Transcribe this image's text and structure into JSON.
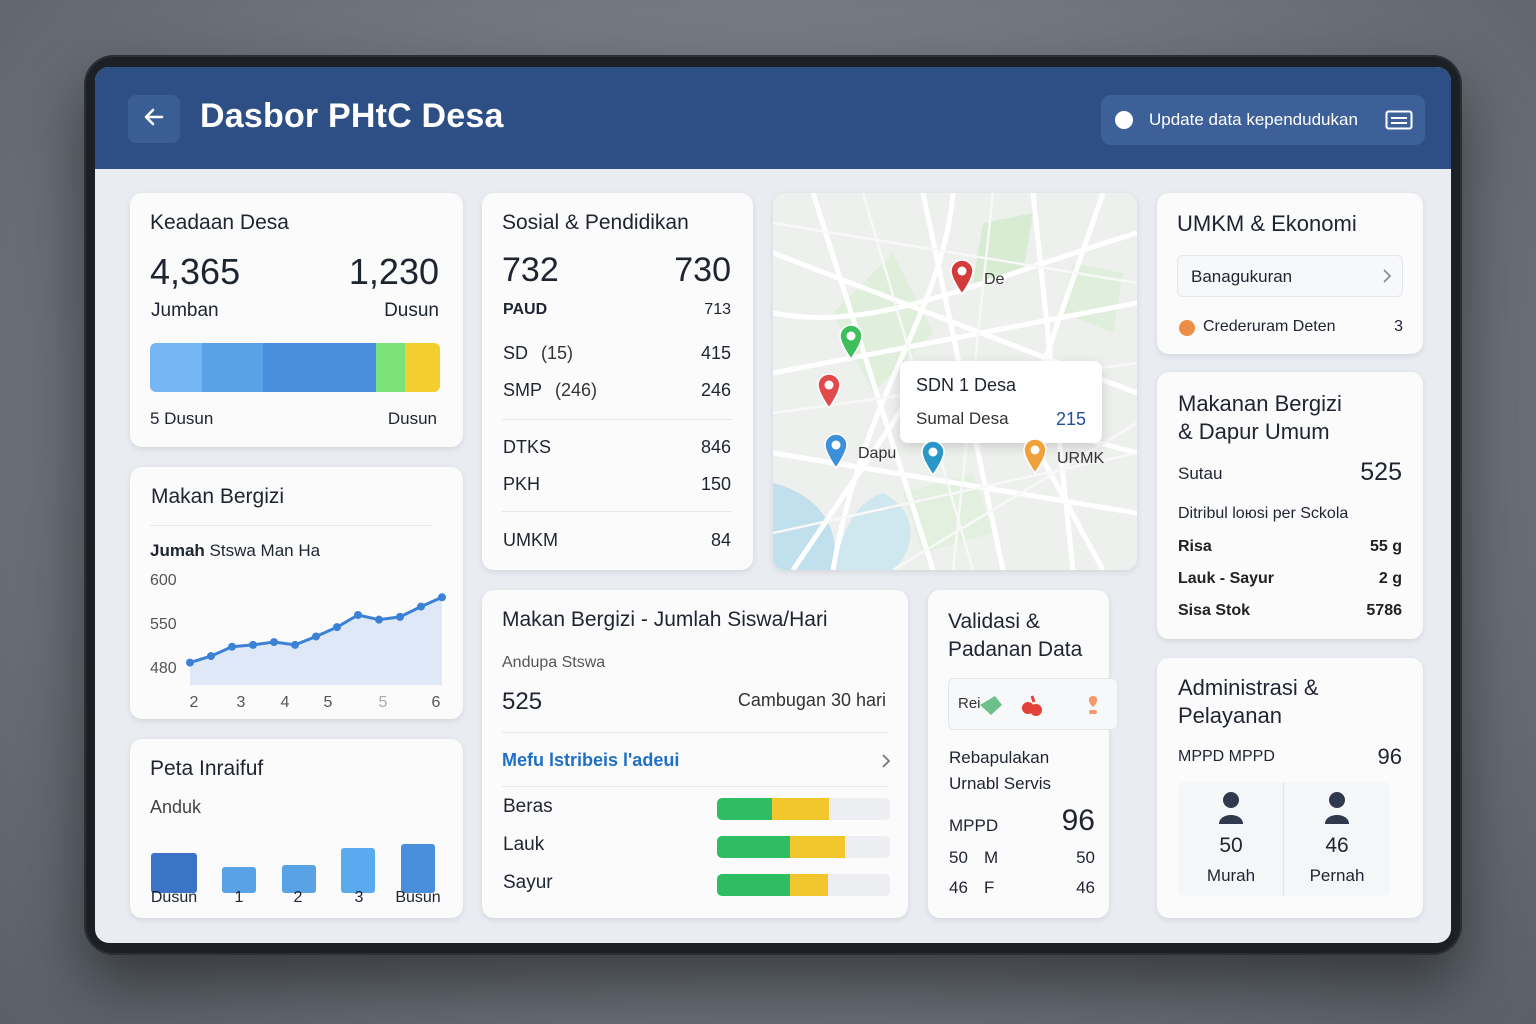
{
  "header": {
    "title": "Dasbor PHtC Desa",
    "update_label": "Update data kependudukan"
  },
  "colors": {
    "header_bg": "#2d4f85",
    "link_blue": "#1f6fc7",
    "progress_green": "#2ebd63",
    "progress_yellow": "#f2c72e"
  },
  "keadaan": {
    "title": "Keadaan Desa",
    "value_left": "4,365",
    "label_left": "Jumban",
    "value_right": "1,230",
    "label_right": "Dusun",
    "segments": [
      {
        "color": "#76b6f4",
        "share": 0.18
      },
      {
        "color": "#5aa2e6",
        "share": 0.21
      },
      {
        "color": "#4a8fdb",
        "share": 0.39
      },
      {
        "color": "#7be27a",
        "share": 0.1
      },
      {
        "color": "#f2cf2e",
        "share": 0.12
      }
    ],
    "footer_left": "5 Dusun",
    "footer_right": "Dusun"
  },
  "makan_bergizi": {
    "title": "Makan Bergizi",
    "subtitle_bold": "Jumah",
    "subtitle_rest": "Stswa Man Ha",
    "chart_data": {
      "type": "area",
      "title": "Makan Bergizi",
      "xlabel": "",
      "ylabel": "",
      "ytick_labels": [
        "600",
        "550",
        "480"
      ],
      "xtick_labels": [
        "2",
        "3",
        "4",
        "5",
        "5",
        "6"
      ],
      "series": [
        {
          "values": [
            504,
            511,
            521,
            523,
            526,
            523,
            532,
            542,
            555,
            550,
            553,
            564,
            574
          ]
        }
      ],
      "ylim": [
        480,
        600
      ]
    }
  },
  "peta": {
    "title": "Peta Inraifuf",
    "subtitle": "Anduk",
    "chart_data": {
      "type": "bar",
      "categories": [
        "Dusun",
        "1",
        "2",
        "3",
        "Busun"
      ],
      "values": [
        40,
        26,
        28,
        45,
        49
      ],
      "colors": [
        "#3b73c6",
        "#5aa2e6",
        "#5aa2e6",
        "#5aaaf0",
        "#4a8fdb"
      ]
    }
  },
  "sosial": {
    "title": "Sosial & Pendidikan",
    "big_left": "732",
    "big_right": "730",
    "rows_a": [
      {
        "label": "PAUD",
        "value": "713"
      }
    ],
    "rows_b": [
      {
        "label": "SD",
        "extra": "(15)",
        "value": "415"
      },
      {
        "label": "SMP",
        "extra": "(246)",
        "value": "246"
      }
    ],
    "rows_c": [
      {
        "label": "DTKS",
        "value": "846"
      },
      {
        "label": "PKH",
        "value": "150"
      }
    ],
    "rows_d": [
      {
        "label": "UMKM",
        "value": "84"
      }
    ]
  },
  "map": {
    "pins": [
      {
        "label": "De",
        "color": "#d33b3b"
      },
      {
        "label": "",
        "color": "#3fbf5c"
      },
      {
        "label": "",
        "color": "#e04a4a"
      },
      {
        "label": "Dapu",
        "color": "#3d8fd9"
      },
      {
        "label": "",
        "color": "#2a97c9"
      },
      {
        "label": "URMK",
        "color": "#f0a13b"
      }
    ],
    "popup": {
      "title": "SDN 1 Desa",
      "label": "Sumal Desa",
      "value": "215"
    }
  },
  "makan_hari": {
    "title": "Makan Bergizi - Jumlah Siswa/Hari",
    "subtitle": "Andupa Stswa",
    "value": "525",
    "period": "Cambugan 30 hari",
    "link": "Mefu lstribeis l'adeui",
    "items": [
      {
        "label": "Beras",
        "green": 0.32,
        "yellow": 0.33
      },
      {
        "label": "Lauk",
        "green": 0.42,
        "yellow": 0.32
      },
      {
        "label": "Sayur",
        "green": 0.42,
        "yellow": 0.22
      }
    ]
  },
  "validasi": {
    "title_line1": "Validasi &",
    "title_line2": "Padanan Data",
    "chip_text": "Rei",
    "line1": "Rebapulakan",
    "line2": "Urnabl Servis",
    "mppd_label": "MPPD",
    "mppd_value": "96",
    "rows": [
      {
        "a": "50",
        "b": "M",
        "value": "50"
      },
      {
        "a": "46",
        "b": "F",
        "value": "46"
      }
    ]
  },
  "umkm": {
    "title": "UMKM & Ekonomi",
    "select_label": "Banagukuran",
    "item_label": "Crederuram Deten",
    "item_value": "3"
  },
  "makanan": {
    "title_line1": "Makanan Bergizi",
    "title_line2": "& Dapur Umum",
    "sutau_label": "Sutau",
    "sutau_value": "525",
    "subheading": "Ditribul loюsi per Sckola",
    "rows": [
      {
        "label": "Risa",
        "value": "55 g"
      },
      {
        "label": "Lauk - Sayur",
        "value": "2 g"
      },
      {
        "label": "Sisa Stok",
        "value": "5786"
      }
    ]
  },
  "admin": {
    "title_line1": "Administrasi &",
    "title_line2": "Pelayanan",
    "row_label": "MPPD MPPD",
    "row_value": "96",
    "tiles": [
      {
        "value": "50",
        "label": "Murah"
      },
      {
        "value": "46",
        "label": "Pernah"
      }
    ]
  }
}
